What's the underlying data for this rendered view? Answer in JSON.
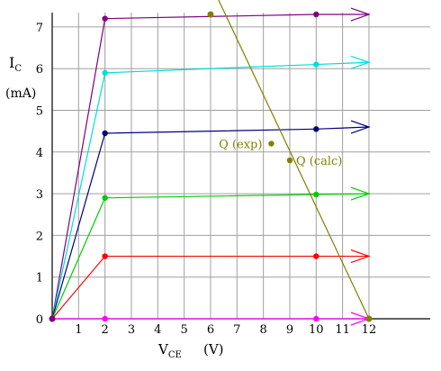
{
  "chart_data": {
    "type": "line",
    "ylabel_main": "I",
    "ylabel_sub": "C",
    "ylabel_unit": "(mA)",
    "xlabel_main": "V",
    "xlabel_sub": "CE",
    "xlabel_unit": "(V)",
    "xlim": [
      0,
      12
    ],
    "ylim": [
      0,
      7
    ],
    "xticks": [
      "1",
      "2",
      "3",
      "4",
      "5",
      "6",
      "7",
      "8",
      "9",
      "10",
      "11",
      "12"
    ],
    "yticks": [
      "0",
      "1",
      "2",
      "3",
      "4",
      "5",
      "6",
      "7"
    ],
    "grid": true,
    "series": [
      {
        "color": "#800080",
        "points": [
          [
            0,
            0
          ],
          [
            2,
            7.2
          ],
          [
            10,
            7.3
          ],
          [
            12,
            7.3
          ]
        ]
      },
      {
        "color": "#00dddd",
        "points": [
          [
            0,
            0
          ],
          [
            2,
            5.9
          ],
          [
            10,
            6.1
          ],
          [
            12,
            6.15
          ]
        ]
      },
      {
        "color": "#000080",
        "points": [
          [
            0,
            0
          ],
          [
            2,
            4.45
          ],
          [
            10,
            4.55
          ],
          [
            12,
            4.6
          ]
        ]
      },
      {
        "color": "#00cc00",
        "points": [
          [
            0,
            0
          ],
          [
            2,
            2.9
          ],
          [
            10,
            2.98
          ],
          [
            12,
            3.0
          ]
        ]
      },
      {
        "color": "#ff0000",
        "points": [
          [
            0,
            0
          ],
          [
            2,
            1.5
          ],
          [
            10,
            1.5
          ],
          [
            12,
            1.5
          ]
        ]
      },
      {
        "color": "#ff00ff",
        "points": [
          [
            0,
            0
          ],
          [
            2,
            0.0
          ],
          [
            10,
            0.0
          ],
          [
            12,
            0.0
          ]
        ]
      }
    ],
    "load_line": {
      "color": "#808000",
      "x1": 6.3,
      "y1": 7.65,
      "x2": 12,
      "y2": 0
    },
    "operating_points": [
      {
        "label": "Q (exp)",
        "x": 8.3,
        "y": 4.2,
        "color": "#808000"
      },
      {
        "label": "Q (calc)",
        "x": 9.0,
        "y": 3.8,
        "color": "#808000"
      }
    ],
    "extra_markers": [
      {
        "x": 6.0,
        "y": 7.3,
        "color": "#808000"
      },
      {
        "x": 12.0,
        "y": 0.0,
        "color": "#808000"
      }
    ]
  }
}
